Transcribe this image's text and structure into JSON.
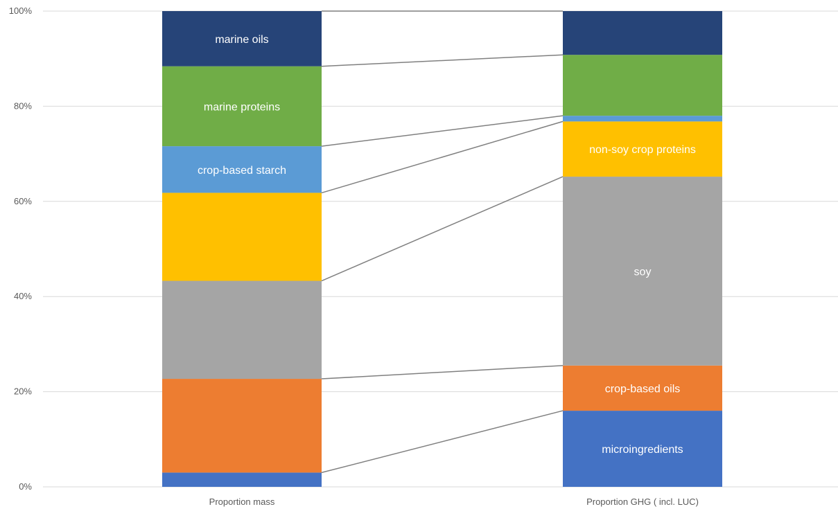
{
  "chart_data": {
    "type": "bar",
    "stacked": true,
    "normalized": true,
    "title": "",
    "xlabel": "",
    "ylabel": "",
    "ylim": [
      0,
      100
    ],
    "y_tick_labels": [
      "0%",
      "20%",
      "40%",
      "60%",
      "80%",
      "100%"
    ],
    "categories": [
      "Proportion mass",
      "Proportion GHG ( incl. LUC)"
    ],
    "series_connectors": true,
    "grid": true,
    "legend": "none",
    "series": [
      {
        "name": "microingredients",
        "values": [
          3.0,
          16.0
        ],
        "color": "#4472C4",
        "labels": [
          "",
          "microingredients"
        ]
      },
      {
        "name": "crop-based oils",
        "values": [
          19.7,
          9.5
        ],
        "color": "#ED7D31",
        "labels": [
          "",
          "crop-based oils"
        ]
      },
      {
        "name": "soy",
        "values": [
          20.6,
          39.7
        ],
        "color": "#A5A5A5",
        "labels": [
          "",
          "soy"
        ]
      },
      {
        "name": "non-soy crop proteins",
        "values": [
          18.5,
          11.6
        ],
        "color": "#FFC000",
        "labels": [
          "",
          "non-soy crop proteins"
        ]
      },
      {
        "name": "crop-based starch",
        "values": [
          9.8,
          1.2
        ],
        "color": "#5B9BD5",
        "labels": [
          "crop-based starch",
          ""
        ]
      },
      {
        "name": "marine proteins",
        "values": [
          16.8,
          12.8
        ],
        "color": "#70AD47",
        "labels": [
          "marine proteins",
          ""
        ]
      },
      {
        "name": "marine oils",
        "values": [
          11.6,
          9.2
        ],
        "color": "#264478",
        "labels": [
          "marine oils",
          ""
        ]
      }
    ]
  }
}
